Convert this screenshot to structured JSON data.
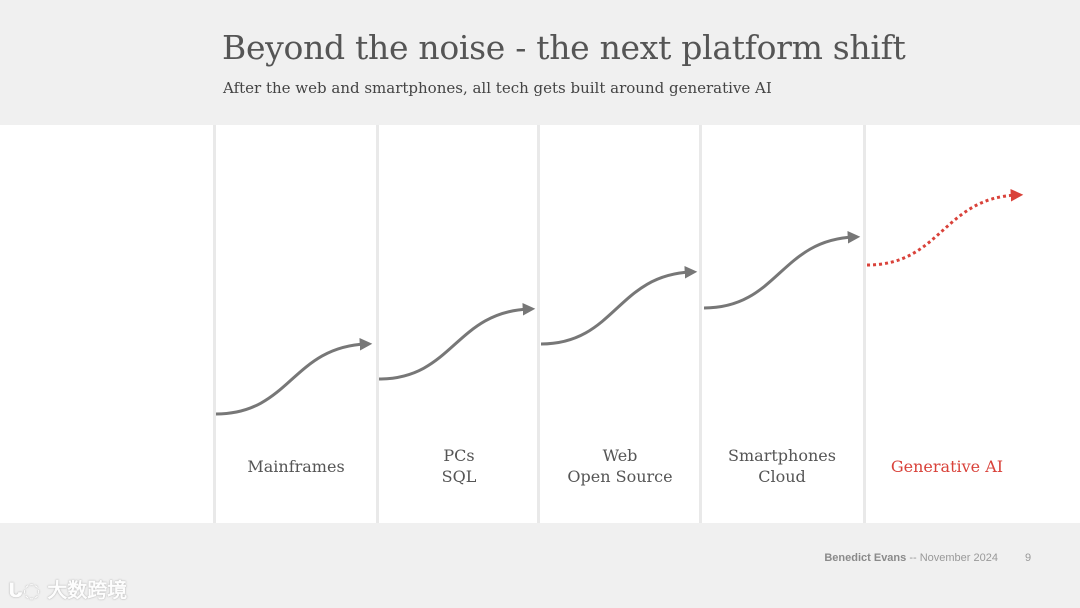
{
  "title": "Beyond the noise - the next platform shift",
  "subtitle": "After the web and smartphones, all tech gets built around generative AI",
  "eras": [
    {
      "lines": [
        "Mainframes"
      ],
      "highlight": false
    },
    {
      "lines": [
        "PCs",
        "SQL"
      ],
      "highlight": false
    },
    {
      "lines": [
        "Web",
        "Open Source"
      ],
      "highlight": false
    },
    {
      "lines": [
        "Smartphones",
        "Cloud"
      ],
      "highlight": false
    },
    {
      "lines": [
        "Generative AI"
      ],
      "highlight": true
    }
  ],
  "colors": {
    "curve": "#777777",
    "highlight": "#d9423a",
    "label": "#555555"
  },
  "footer": {
    "author": "Benedict Evans",
    "separator": "--",
    "date": "November 2024",
    "page": "9"
  },
  "watermark": "大数跨境"
}
